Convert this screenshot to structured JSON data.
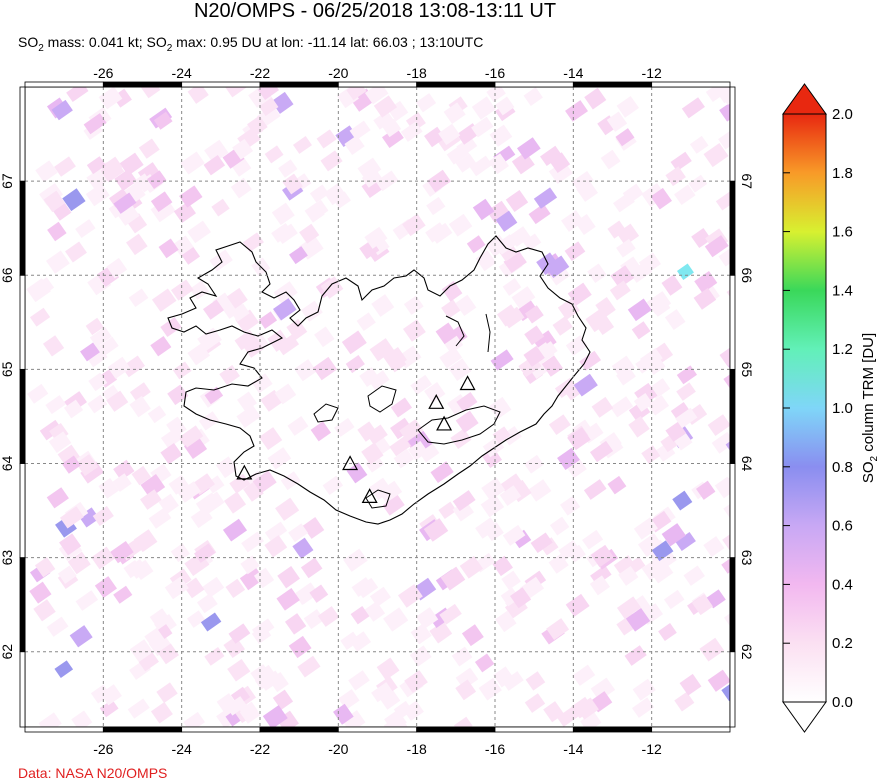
{
  "header": {
    "title": "N20/OMPS - 06/25/2018 13:08-13:11 UT",
    "subtitle_prefix": "SO",
    "subtitle_sub": "2",
    "subtitle_mid": " mass: 0.041 kt; SO",
    "subtitle_sub2": "2",
    "subtitle_rest": " max: 0.95 DU at lon: -11.14 lat: 66.03 ; 13:10UTC"
  },
  "footer": {
    "credit": "Data: NASA N20/OMPS"
  },
  "map": {
    "lon_range": [
      -28,
      -10
    ],
    "lat_range": [
      61.2,
      68.0
    ],
    "lon_ticks": [
      -26,
      -24,
      -22,
      -20,
      -18,
      -16,
      -14,
      -12
    ],
    "lat_ticks": [
      62,
      63,
      64,
      65,
      66,
      67
    ],
    "lon_tick_labels": [
      "-26",
      "-24",
      "-22",
      "-20",
      "-18",
      "-16",
      "-14",
      "-12"
    ],
    "lat_tick_labels": [
      "62",
      "63",
      "64",
      "65",
      "66",
      "67"
    ],
    "grid": true,
    "volcanoes": [
      {
        "lon": -22.4,
        "lat": 63.9
      },
      {
        "lon": -19.7,
        "lat": 64.0
      },
      {
        "lon": -19.2,
        "lat": 63.65
      },
      {
        "lon": -17.5,
        "lat": 64.65
      },
      {
        "lon": -17.3,
        "lat": 64.42
      },
      {
        "lon": -16.7,
        "lat": 64.85
      }
    ],
    "max_marker": {
      "lon": -11.14,
      "lat": 66.03
    }
  },
  "colorbar": {
    "label_prefix": "SO",
    "label_sub": "2",
    "label_rest": " column TRM [DU]",
    "ticks": [
      "0.0",
      "0.2",
      "0.4",
      "0.6",
      "0.8",
      "1.0",
      "1.2",
      "1.4",
      "1.6",
      "1.8",
      "2.0"
    ],
    "min": 0.0,
    "max": 2.0
  },
  "colors": {
    "coastline": "#000000",
    "grid": "#888888",
    "credit": "#e02020"
  }
}
